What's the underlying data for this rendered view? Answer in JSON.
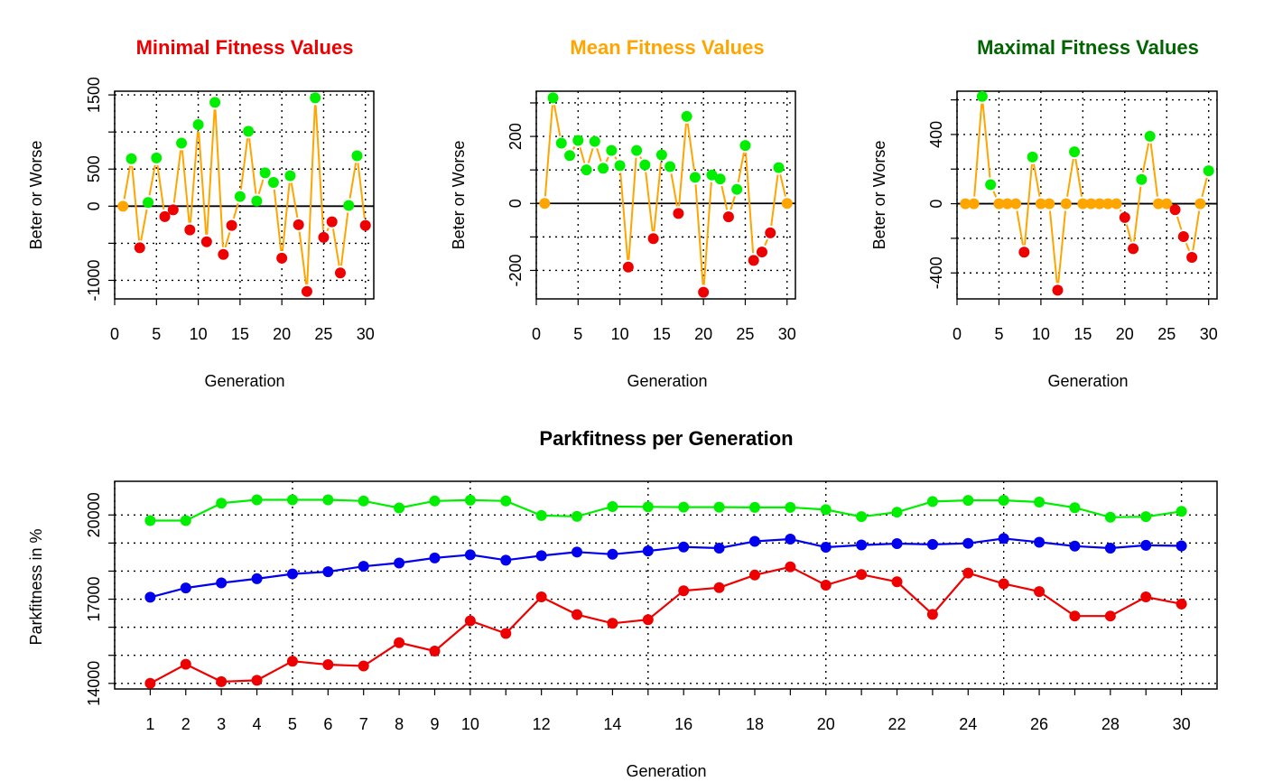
{
  "colors": {
    "better": "#00ee00",
    "worse": "#ee0000",
    "equal": "#ffa500",
    "line": "#ffa500",
    "min_series": "#ee0000",
    "mean_series": "#0000ee",
    "max_series": "#00ee00",
    "title_min": "#ee0000",
    "title_mean": "#ffa500",
    "title_max": "#006400"
  },
  "chart_data": [
    {
      "type": "line",
      "title": "Minimal Fitness Values",
      "xlabel": "Generation",
      "ylabel": "Beter or Worse",
      "xlim": [
        0,
        31
      ],
      "ylim": [
        -1250,
        1550
      ],
      "xticks": [
        0,
        5,
        10,
        15,
        20,
        25,
        30
      ],
      "yticks": [
        -1000,
        0,
        500,
        1500
      ],
      "ygrid": [
        -1000,
        -500,
        0,
        500,
        1000,
        1500
      ],
      "xgrid": [
        0,
        5,
        10,
        15,
        20,
        25,
        30
      ],
      "hline": 0,
      "x": [
        1,
        2,
        3,
        4,
        5,
        6,
        7,
        8,
        9,
        10,
        11,
        12,
        13,
        14,
        15,
        16,
        17,
        18,
        19,
        20,
        21,
        22,
        23,
        24,
        25,
        26,
        27,
        28,
        29,
        30
      ],
      "values": [
        0,
        640,
        -560,
        50,
        650,
        -140,
        -50,
        850,
        -320,
        1100,
        -480,
        1400,
        -650,
        -260,
        130,
        1010,
        70,
        450,
        320,
        -700,
        410,
        -250,
        -1150,
        1460,
        -420,
        -210,
        -900,
        10,
        680,
        -260
      ]
    },
    {
      "type": "line",
      "title": "Mean Fitness Values",
      "xlabel": "Generation",
      "ylabel": "Beter or Worse",
      "xlim": [
        0,
        31
      ],
      "ylim": [
        -285,
        335
      ],
      "xticks": [
        0,
        5,
        10,
        15,
        20,
        25,
        30
      ],
      "yticks": [
        -200,
        0,
        200
      ],
      "ygrid": [
        -300,
        -200,
        -100,
        0,
        100,
        200,
        300
      ],
      "xgrid": [
        0,
        5,
        10,
        15,
        20,
        25,
        30
      ],
      "hline": 0,
      "x": [
        1,
        2,
        3,
        4,
        5,
        6,
        7,
        8,
        9,
        10,
        11,
        12,
        13,
        14,
        15,
        16,
        17,
        18,
        19,
        20,
        21,
        22,
        23,
        24,
        25,
        26,
        27,
        28,
        29,
        30
      ],
      "values": [
        0,
        315,
        180,
        143,
        188,
        100,
        185,
        105,
        158,
        113,
        -190,
        158,
        115,
        -105,
        145,
        110,
        -30,
        260,
        78,
        -265,
        85,
        73,
        -40,
        42,
        173,
        -170,
        -145,
        -88,
        107,
        0
      ]
    },
    {
      "type": "line",
      "title": "Maximal Fitness Values",
      "xlabel": "Generation",
      "ylabel": "Beter or Worse",
      "xlim": [
        0,
        31
      ],
      "ylim": [
        -550,
        650
      ],
      "xticks": [
        0,
        5,
        10,
        15,
        20,
        25,
        30
      ],
      "yticks": [
        -400,
        0,
        400
      ],
      "ygrid": [
        -400,
        -200,
        0,
        200,
        400,
        600
      ],
      "xgrid": [
        0,
        5,
        10,
        15,
        20,
        25,
        30
      ],
      "hline": 0,
      "x": [
        1,
        2,
        3,
        4,
        5,
        6,
        7,
        8,
        9,
        10,
        11,
        12,
        13,
        14,
        15,
        16,
        17,
        18,
        19,
        20,
        21,
        22,
        23,
        24,
        25,
        26,
        27,
        28,
        29,
        30
      ],
      "values": [
        0,
        0,
        620,
        110,
        0,
        0,
        0,
        -280,
        270,
        0,
        0,
        -500,
        0,
        300,
        0,
        0,
        0,
        0,
        0,
        -80,
        -260,
        140,
        390,
        0,
        0,
        -35,
        -190,
        -310,
        0,
        190
      ]
    },
    {
      "type": "line",
      "title": "Parkfitness per Generation",
      "xlabel": "Generation",
      "ylabel": "Parkfitness in %",
      "xlim": [
        0,
        31
      ],
      "ylim": [
        13800,
        21200
      ],
      "categories": [
        "1",
        "2",
        "3",
        "4",
        "5",
        "6",
        "7",
        "8",
        "9",
        "10",
        "11",
        "12",
        "13",
        "14",
        "15",
        "16",
        "17",
        "18",
        "19",
        "20",
        "21",
        "22",
        "23",
        "24",
        "25",
        "26",
        "27",
        "28",
        "29",
        "30"
      ],
      "xtick_labels_shown": [
        "1",
        "2",
        "3",
        "4",
        "5",
        "6",
        "7",
        "8",
        "9",
        "10",
        "12",
        "14",
        "16",
        "18",
        "20",
        "22",
        "24",
        "26",
        "28",
        "30"
      ],
      "yticks": [
        14000,
        17000,
        20000
      ],
      "ygrid": [
        14000,
        15000,
        16000,
        17000,
        18000,
        19000,
        20000
      ],
      "xgrid": [
        0,
        5,
        10,
        15,
        20,
        25,
        30
      ],
      "x": [
        1,
        2,
        3,
        4,
        5,
        6,
        7,
        8,
        9,
        10,
        11,
        12,
        13,
        14,
        15,
        16,
        17,
        18,
        19,
        20,
        21,
        22,
        23,
        24,
        25,
        26,
        27,
        28,
        29,
        30
      ],
      "series": [
        {
          "values": [
            19800,
            19800,
            20420,
            20540,
            20540,
            20540,
            20500,
            20250,
            20500,
            20530,
            20500,
            19980,
            19950,
            20300,
            20290,
            20280,
            20280,
            20270,
            20270,
            20190,
            19940,
            20100,
            20480,
            20520,
            20520,
            20460,
            20260,
            19920,
            19940,
            20130
          ]
        },
        {
          "values": [
            17070,
            17400,
            17580,
            17730,
            17900,
            17980,
            18170,
            18290,
            18470,
            18580,
            18390,
            18550,
            18680,
            18600,
            18720,
            18860,
            18820,
            19060,
            19140,
            18850,
            18930,
            18980,
            18950,
            18990,
            19160,
            19030,
            18890,
            18820,
            18920,
            18900
          ]
        },
        {
          "values": [
            14000,
            14680,
            14060,
            14110,
            14790,
            14670,
            14620,
            15450,
            15150,
            16230,
            15780,
            17080,
            16450,
            16140,
            16270,
            17300,
            17410,
            17860,
            18150,
            17500,
            17880,
            17620,
            16460,
            17930,
            17550,
            17270,
            16400,
            16400,
            17080,
            16830
          ]
        }
      ]
    }
  ]
}
